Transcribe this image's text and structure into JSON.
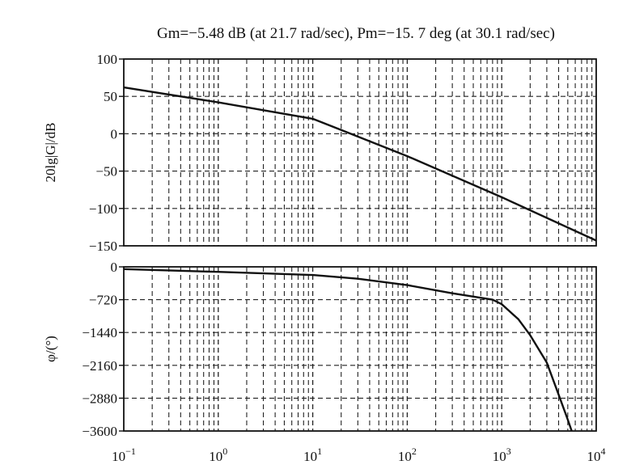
{
  "chart_data": [
    {
      "type": "line",
      "title": "Gm=−5.48 dB (at 21.7 rad/sec), Pm=−15. 7 deg (at 30.1 rad/sec)",
      "ylabel": "20lg|G|/dB",
      "xscale": "log",
      "xlim": [
        0.1,
        10000
      ],
      "ylim": [
        -150,
        100
      ],
      "yticks": [
        100,
        50,
        0,
        -50,
        -100,
        -150
      ],
      "yticklabels": [
        "100",
        "50",
        "0",
        "−50",
        "−100",
        "−150"
      ],
      "grid": true,
      "series": [
        {
          "x": [
            0.1,
            1,
            10,
            20,
            100,
            1000,
            10000
          ],
          "y": [
            62,
            42,
            20,
            5,
            -30,
            -85,
            -143
          ]
        }
      ]
    },
    {
      "type": "line",
      "ylabel": "φ/(°)",
      "xscale": "log",
      "xlim": [
        0.1,
        10000
      ],
      "ylim": [
        -3600,
        0
      ],
      "yticks": [
        0,
        -720,
        -1440,
        -2160,
        -2880,
        -3600
      ],
      "yticklabels": [
        "0",
        "−720",
        "−1440",
        "−2160",
        "−2880",
        "−3600"
      ],
      "xticks": [
        0.1,
        1,
        10,
        100,
        1000,
        10000
      ],
      "xticklabels": [
        {
          "base": "10",
          "exp": "−1"
        },
        {
          "base": "10",
          "exp": "0"
        },
        {
          "base": "10",
          "exp": "1"
        },
        {
          "base": "10",
          "exp": "2"
        },
        {
          "base": "10",
          "exp": "3"
        },
        {
          "base": "10",
          "exp": "4"
        }
      ],
      "grid": true,
      "series": [
        {
          "x": [
            0.1,
            1,
            10,
            30,
            100,
            300,
            800,
            1000,
            1500,
            2000,
            3000,
            4000,
            5000,
            5500
          ],
          "y": [
            -50,
            -110,
            -180,
            -260,
            -400,
            -580,
            -720,
            -820,
            -1150,
            -1500,
            -2100,
            -2800,
            -3350,
            -3600
          ]
        }
      ]
    }
  ]
}
